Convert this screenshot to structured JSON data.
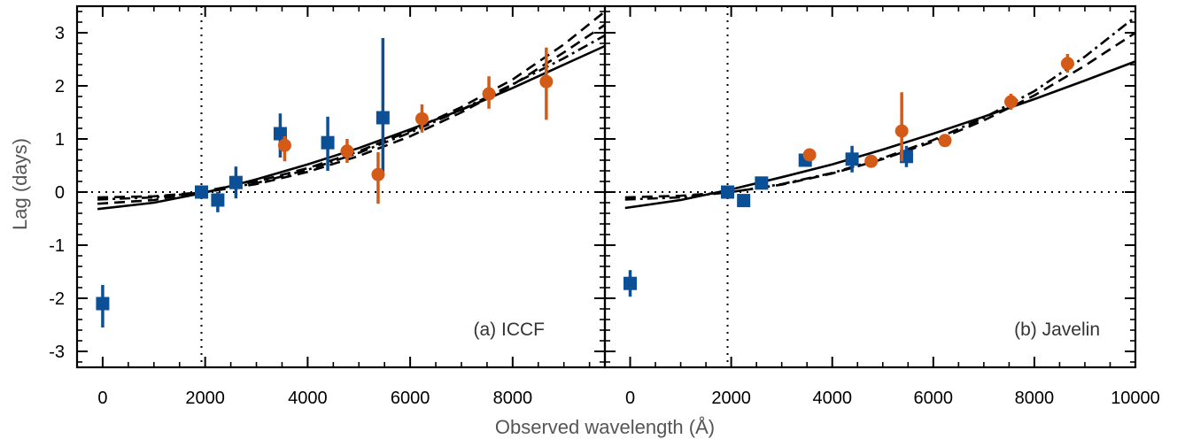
{
  "figure": {
    "xlabel": "Observed wavelength (Å)",
    "ylabel": "Lag (days)",
    "colors": {
      "blue": "#0b4f97",
      "orange": "#d35a17",
      "axis": "#000000"
    }
  },
  "chart_data": [
    {
      "type": "scatter",
      "panel_label": "(a) ICCF",
      "xlim": [
        -500,
        9800
      ],
      "ylim": [
        -3.3,
        3.5
      ],
      "xticks": [
        "0",
        "2000",
        "4000",
        "6000",
        "8000"
      ],
      "xtick_values": [
        0,
        2000,
        4000,
        6000,
        8000
      ],
      "yticks": [
        "-3",
        "-2",
        "-1",
        "0",
        "1",
        "2",
        "3"
      ],
      "ytick_values": [
        -3,
        -2,
        -1,
        0,
        1,
        2,
        3
      ],
      "reference_lines": {
        "x": 1928,
        "y": 0
      },
      "series": [
        {
          "marker": "square",
          "color": "#0b4f97",
          "points": [
            {
              "x": 0,
              "y": -2.1,
              "ylo": -2.55,
              "yhi": -1.75
            },
            {
              "x": 1928,
              "y": 0.0,
              "ylo": 0.0,
              "yhi": 0.0
            },
            {
              "x": 2246,
              "y": -0.15,
              "ylo": -0.38,
              "yhi": 0.0
            },
            {
              "x": 2600,
              "y": 0.18,
              "ylo": -0.12,
              "yhi": 0.48
            },
            {
              "x": 3465,
              "y": 1.1,
              "ylo": 0.65,
              "yhi": 1.48
            },
            {
              "x": 4392,
              "y": 0.93,
              "ylo": 0.4,
              "yhi": 1.42
            },
            {
              "x": 5468,
              "y": 1.4,
              "ylo": 0.35,
              "yhi": 2.9
            }
          ]
        },
        {
          "marker": "circle",
          "color": "#d35a17",
          "points": [
            {
              "x": 3551,
              "y": 0.88,
              "ylo": 0.58,
              "yhi": 1.05
            },
            {
              "x": 4770,
              "y": 0.77,
              "ylo": 0.55,
              "yhi": 1.0
            },
            {
              "x": 5375,
              "y": 0.33,
              "ylo": -0.22,
              "yhi": 0.75
            },
            {
              "x": 6231,
              "y": 1.38,
              "ylo": 1.12,
              "yhi": 1.65
            },
            {
              "x": 7537,
              "y": 1.85,
              "ylo": 1.57,
              "yhi": 2.18
            },
            {
              "x": 8657,
              "y": 2.08,
              "ylo": 1.36,
              "yhi": 2.72
            }
          ]
        }
      ],
      "curves": [
        {
          "style": "solid",
          "x": [
            -100,
            1000,
            2000,
            3000,
            4000,
            5000,
            6000,
            7000,
            8000,
            9000,
            9800
          ],
          "y": [
            -0.32,
            -0.2,
            -0.01,
            0.24,
            0.52,
            0.83,
            1.18,
            1.55,
            1.96,
            2.4,
            2.75
          ]
        },
        {
          "style": "dashed",
          "x": [
            -100,
            1000,
            2000,
            3000,
            4000,
            5000,
            6000,
            7000,
            8000,
            9000,
            9800
          ],
          "y": [
            -0.22,
            -0.15,
            0.02,
            0.2,
            0.45,
            0.77,
            1.15,
            1.6,
            2.12,
            2.78,
            3.4
          ]
        },
        {
          "style": "dashed",
          "x": [
            -100,
            1000,
            2000,
            3000,
            4000,
            5000,
            6000,
            7000,
            8000,
            9000,
            9800
          ],
          "y": [
            -0.1,
            -0.08,
            0.0,
            0.15,
            0.38,
            0.68,
            1.05,
            1.5,
            2.02,
            2.63,
            3.15
          ]
        },
        {
          "style": "dashdot",
          "x": [
            -100,
            1000,
            2000,
            3000,
            4000,
            5000,
            6000,
            7000,
            8000,
            9000,
            9800
          ],
          "y": [
            -0.14,
            -0.1,
            0.0,
            0.17,
            0.42,
            0.74,
            1.12,
            1.55,
            2.03,
            2.52,
            2.95
          ]
        }
      ]
    },
    {
      "type": "scatter",
      "panel_label": "(b) Javelin",
      "xlim": [
        -500,
        10000
      ],
      "ylim": [
        -3.3,
        3.5
      ],
      "xticks": [
        "0",
        "2000",
        "4000",
        "6000",
        "8000",
        "10000"
      ],
      "xtick_values": [
        0,
        2000,
        4000,
        6000,
        8000,
        10000
      ],
      "yticks": [
        "-3",
        "-2",
        "-1",
        "0",
        "1",
        "2",
        "3"
      ],
      "ytick_values": [
        -3,
        -2,
        -1,
        0,
        1,
        2,
        3
      ],
      "reference_lines": {
        "x": 1928,
        "y": 0
      },
      "series": [
        {
          "marker": "square",
          "color": "#0b4f97",
          "points": [
            {
              "x": 0,
              "y": -1.72,
              "ylo": -1.97,
              "yhi": -1.47
            },
            {
              "x": 1928,
              "y": 0.0,
              "ylo": 0.0,
              "yhi": 0.0
            },
            {
              "x": 2246,
              "y": -0.16,
              "ylo": -0.22,
              "yhi": -0.1
            },
            {
              "x": 2600,
              "y": 0.17,
              "ylo": 0.1,
              "yhi": 0.24
            },
            {
              "x": 3465,
              "y": 0.6,
              "ylo": 0.5,
              "yhi": 0.7
            },
            {
              "x": 4392,
              "y": 0.62,
              "ylo": 0.37,
              "yhi": 0.87
            },
            {
              "x": 5468,
              "y": 0.67,
              "ylo": 0.47,
              "yhi": 0.87
            }
          ]
        },
        {
          "marker": "circle",
          "color": "#d35a17",
          "points": [
            {
              "x": 3551,
              "y": 0.7,
              "ylo": 0.58,
              "yhi": 0.82
            },
            {
              "x": 4770,
              "y": 0.58,
              "ylo": 0.5,
              "yhi": 0.66
            },
            {
              "x": 5375,
              "y": 1.15,
              "ylo": 0.58,
              "yhi": 1.88
            },
            {
              "x": 6231,
              "y": 0.97,
              "ylo": 0.9,
              "yhi": 1.04
            },
            {
              "x": 7537,
              "y": 1.7,
              "ylo": 1.55,
              "yhi": 1.85
            },
            {
              "x": 8657,
              "y": 2.42,
              "ylo": 2.25,
              "yhi": 2.6
            }
          ]
        }
      ],
      "curves": [
        {
          "style": "solid",
          "x": [
            -100,
            1000,
            2000,
            3000,
            4000,
            5000,
            6000,
            7000,
            8000,
            9000,
            10000
          ],
          "y": [
            -0.3,
            -0.15,
            0.05,
            0.28,
            0.52,
            0.8,
            1.1,
            1.42,
            1.75,
            2.1,
            2.46
          ]
        },
        {
          "style": "dashed",
          "x": [
            -100,
            1000,
            2000,
            3000,
            4000,
            5000,
            6000,
            7000,
            8000,
            9000,
            10000
          ],
          "y": [
            -0.1,
            -0.07,
            0.0,
            0.14,
            0.35,
            0.62,
            0.95,
            1.35,
            1.82,
            2.38,
            3.0
          ]
        },
        {
          "style": "dashdot",
          "x": [
            -100,
            1000,
            2000,
            3000,
            4000,
            5000,
            6000,
            7000,
            8000,
            9000,
            10000
          ],
          "y": [
            -0.14,
            -0.1,
            0.0,
            0.15,
            0.36,
            0.64,
            0.98,
            1.4,
            1.9,
            2.55,
            3.3
          ]
        }
      ]
    }
  ]
}
